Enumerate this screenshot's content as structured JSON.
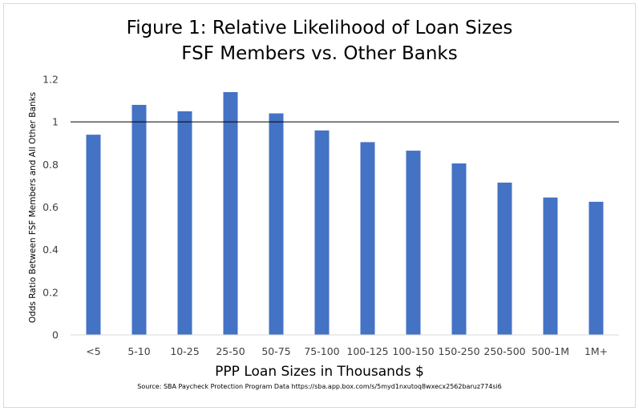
{
  "chart_data": {
    "type": "bar",
    "title": "Figure 1: Relative Likelihood of Loan Sizes",
    "subtitle": "FSF Members vs. Other Banks",
    "xlabel": "PPP Loan Sizes in Thousands $",
    "ylabel": "Odds Ratio Between FSF Members and All Other Banks",
    "source": "Source: SBA Paycheck Protection Program Data https://sba.app.box.com/s/5myd1nxutoq8wxecx2562baruz774si6",
    "categories": [
      "<5",
      "5-10",
      "10-25",
      "25-50",
      "50-75",
      "75-100",
      "100-125",
      "100-150",
      "150-250",
      "250-500",
      "500-1M",
      "1M+"
    ],
    "values": [
      0.94,
      1.08,
      1.05,
      1.14,
      1.04,
      0.96,
      0.905,
      0.865,
      0.805,
      0.715,
      0.645,
      0.625
    ],
    "ylim": [
      0,
      1.2
    ],
    "yticks": [
      "0",
      "0.2",
      "0.4",
      "0.6",
      "0.8",
      "1",
      "1.2"
    ],
    "reference_line": 1,
    "grid": false,
    "bar_color": "#4472c4"
  }
}
